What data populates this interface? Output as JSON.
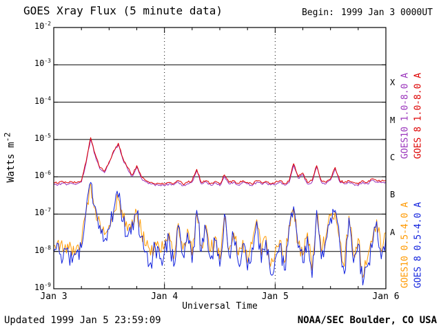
{
  "header": {
    "begin_label": "Begin:",
    "begin_value": "1999 Jan 3 0000UT"
  },
  "footer": {
    "updated": "Updated 1999 Jan 5 23:59:09",
    "source": "NOAA/SEC Boulder, CO USA"
  },
  "chart_data": {
    "type": "line",
    "title": "GOES Xray Flux (5 minute data)",
    "xlabel": "Universal Time",
    "ylabel": "Watts m^-2",
    "ylabel_base": "Watts m",
    "ylabel_exp": "-2",
    "y_scale": "log10",
    "ylim_log10": [
      -9,
      -2
    ],
    "xlim_hours": [
      0,
      72
    ],
    "x_step_hours": 1,
    "grid": {
      "horizontal": "solid decade lines",
      "vertical": "dotted at day boundaries"
    },
    "y_tick_exponents": [
      -2,
      -3,
      -4,
      -5,
      -6,
      -7,
      -8,
      -9
    ],
    "x_ticks": [
      {
        "hour": 0,
        "label": "Jan 3"
      },
      {
        "hour": 24,
        "label": "Jan 4"
      },
      {
        "hour": 48,
        "label": "Jan 5"
      },
      {
        "hour": 72,
        "label": "Jan 6"
      }
    ],
    "flare_classes": [
      {
        "label": "X",
        "log10_range": [
          -4,
          -3
        ]
      },
      {
        "label": "M",
        "log10_range": [
          -5,
          -4
        ]
      },
      {
        "label": "C",
        "log10_range": [
          -6,
          -5
        ]
      },
      {
        "label": "B",
        "log10_range": [
          -7,
          -6
        ]
      },
      {
        "label": "A",
        "log10_range": [
          -8,
          -7
        ]
      }
    ],
    "series": [
      {
        "name": "GOES10 1.0-8.0 A",
        "color": "#9933bb",
        "jitter_log": 0.03,
        "values_log10": [
          -6.19,
          -6.21,
          -6.17,
          -6.2,
          -6.18,
          -6.19,
          -6.14,
          -5.64,
          -4.99,
          -5.44,
          -5.79,
          -5.89,
          -5.64,
          -5.34,
          -5.14,
          -5.54,
          -5.79,
          -5.99,
          -5.74,
          -6.04,
          -6.14,
          -6.19,
          -6.24,
          -6.22,
          -6.24,
          -6.19,
          -6.22,
          -6.14,
          -6.24,
          -6.19,
          -6.14,
          -5.84,
          -6.19,
          -6.14,
          -6.22,
          -6.16,
          -6.24,
          -5.99,
          -6.19,
          -6.14,
          -6.22,
          -6.14,
          -6.19,
          -6.24,
          -6.14,
          -6.19,
          -6.16,
          -6.22,
          -6.19,
          -6.14,
          -6.22,
          -6.16,
          -5.69,
          -6.04,
          -5.94,
          -6.19,
          -6.14,
          -5.74,
          -6.14,
          -6.19,
          -6.09,
          -5.79,
          -6.14,
          -6.19,
          -6.14,
          -6.19,
          -6.24,
          -6.14,
          -6.19,
          -6.09,
          -6.14,
          -6.16,
          -6.14
        ]
      },
      {
        "name": "GOES 8 1.0-8.0 A",
        "color": "#dd0000",
        "jitter_log": 0.03,
        "values_log10": [
          -6.15,
          -6.17,
          -6.13,
          -6.16,
          -6.14,
          -6.15,
          -6.1,
          -5.6,
          -4.95,
          -5.4,
          -5.75,
          -5.85,
          -5.6,
          -5.3,
          -5.1,
          -5.5,
          -5.75,
          -5.95,
          -5.7,
          -6.0,
          -6.1,
          -6.15,
          -6.2,
          -6.18,
          -6.2,
          -6.15,
          -6.18,
          -6.1,
          -6.2,
          -6.15,
          -6.1,
          -5.8,
          -6.15,
          -6.1,
          -6.18,
          -6.12,
          -6.2,
          -5.95,
          -6.15,
          -6.1,
          -6.18,
          -6.1,
          -6.15,
          -6.2,
          -6.1,
          -6.15,
          -6.12,
          -6.18,
          -6.15,
          -6.1,
          -6.18,
          -6.12,
          -5.65,
          -6.0,
          -5.9,
          -6.15,
          -6.1,
          -5.7,
          -6.1,
          -6.15,
          -6.05,
          -5.75,
          -6.1,
          -6.15,
          -6.1,
          -6.15,
          -6.2,
          -6.1,
          -6.15,
          -6.05,
          -6.1,
          -6.12,
          -6.1
        ]
      },
      {
        "name": "GOES10 0.5-4.0 A",
        "color": "#ff9900",
        "jitter_log": 0.22,
        "values_log10": [
          -7.85,
          -7.7,
          -8.0,
          -7.8,
          -8.1,
          -7.85,
          -7.8,
          -6.95,
          -6.2,
          -6.85,
          -7.2,
          -7.55,
          -7.3,
          -6.95,
          -6.6,
          -7.1,
          -7.45,
          -7.15,
          -6.95,
          -7.5,
          -7.85,
          -8.1,
          -7.75,
          -8.0,
          -7.85,
          -7.5,
          -8.2,
          -7.25,
          -7.95,
          -7.4,
          -8.1,
          -6.95,
          -7.85,
          -7.3,
          -8.0,
          -7.6,
          -8.2,
          -7.05,
          -7.95,
          -7.5,
          -8.1,
          -7.7,
          -8.3,
          -7.8,
          -7.15,
          -8.1,
          -7.6,
          -8.4,
          -8.0,
          -7.7,
          -8.3,
          -7.3,
          -6.85,
          -7.8,
          -8.1,
          -7.5,
          -8.5,
          -6.95,
          -8.0,
          -7.6,
          -7.05,
          -6.95,
          -7.7,
          -8.4,
          -7.05,
          -8.1,
          -7.65,
          -8.7,
          -8.2,
          -7.75,
          -7.15,
          -8.0,
          -7.5
        ]
      },
      {
        "name": "GOES 8 0.5-4.0 A",
        "color": "#1122dd",
        "jitter_log": 0.28,
        "values_log10": [
          -8.0,
          -7.8,
          -8.2,
          -7.9,
          -8.3,
          -8.0,
          -7.9,
          -6.9,
          -6.15,
          -6.8,
          -7.3,
          -7.7,
          -7.4,
          -6.9,
          -6.55,
          -7.2,
          -7.6,
          -7.2,
          -7.0,
          -7.6,
          -8.0,
          -8.3,
          -7.9,
          -8.2,
          -8.0,
          -7.6,
          -8.4,
          -7.3,
          -8.1,
          -7.5,
          -8.3,
          -6.9,
          -8.0,
          -7.4,
          -8.2,
          -7.7,
          -8.4,
          -7.0,
          -8.1,
          -7.6,
          -8.3,
          -7.8,
          -8.5,
          -7.9,
          -7.2,
          -8.3,
          -7.7,
          -8.6,
          -8.2,
          -7.8,
          -8.5,
          -7.4,
          -6.8,
          -7.9,
          -8.3,
          -7.6,
          -8.7,
          -6.9,
          -8.2,
          -7.7,
          -7.1,
          -6.9,
          -7.8,
          -8.6,
          -7.1,
          -8.3,
          -7.8,
          -8.9,
          -8.4,
          -7.9,
          -7.2,
          -8.2,
          -7.6
        ]
      }
    ]
  }
}
